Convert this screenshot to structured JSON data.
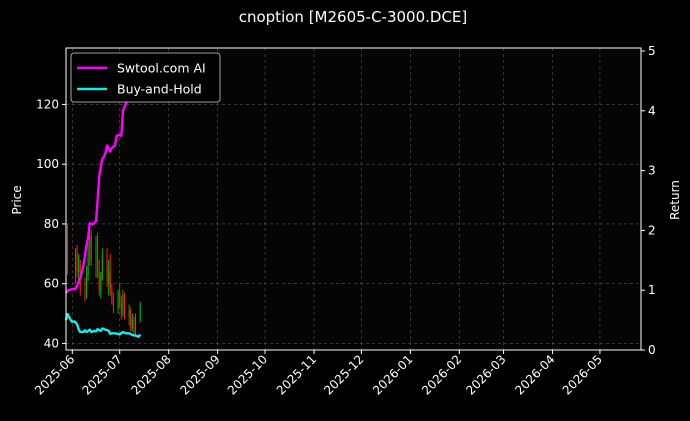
{
  "chart_data": {
    "type": "line",
    "title": "cnoption [M2605-C-3000.DCE]",
    "ylabel_left": "Price",
    "ylabel_right": "Return",
    "ylim_left": [
      37.8,
      138.9
    ],
    "ylim_right": [
      0,
      5.05
    ],
    "xlim": [
      "2025-05-28",
      "2026-05-27"
    ],
    "y_ticks_left": [
      40,
      60,
      80,
      100,
      120
    ],
    "y_ticks_right": [
      0,
      1,
      2,
      3,
      4,
      5
    ],
    "x_ticks": [
      "2025-06",
      "2025-07",
      "2025-08",
      "2025-09",
      "2025-10",
      "2025-11",
      "2025-12",
      "2026-01",
      "2026-02",
      "2026-03",
      "2026-04",
      "2026-05"
    ],
    "grid": true,
    "legend_position": "upper-left",
    "colors": {
      "background": "#000000",
      "plot_background": "#050505",
      "strategy": "#ff00ff",
      "buy_hold": "#22e5e5",
      "up_candle": "#00b000",
      "down_candle": "#ff1a1a"
    },
    "candles": [
      {
        "date": "2025-05-28",
        "open": 64,
        "high": 74,
        "low": 62,
        "close": 72
      },
      {
        "date": "2025-05-29",
        "open": 75,
        "high": 80,
        "low": 63,
        "close": 67
      },
      {
        "date": "2025-06-03",
        "open": 62,
        "high": 72,
        "low": 60,
        "close": 70
      },
      {
        "date": "2025-06-04",
        "open": 71,
        "high": 73,
        "low": 62,
        "close": 64
      },
      {
        "date": "2025-06-05",
        "open": 64,
        "high": 70,
        "low": 60,
        "close": 69
      },
      {
        "date": "2025-06-06",
        "open": 66,
        "high": 68,
        "low": 56,
        "close": 58
      },
      {
        "date": "2025-06-09",
        "open": 57,
        "high": 62,
        "low": 54,
        "close": 56
      },
      {
        "date": "2025-06-10",
        "open": 56,
        "high": 66,
        "low": 55,
        "close": 64
      },
      {
        "date": "2025-06-11",
        "open": 63,
        "high": 74,
        "low": 61,
        "close": 71
      },
      {
        "date": "2025-06-12",
        "open": 72,
        "high": 79,
        "low": 66,
        "close": 76
      },
      {
        "date": "2025-06-13",
        "open": 76,
        "high": 78,
        "low": 66,
        "close": 68
      },
      {
        "date": "2025-06-16",
        "open": 68,
        "high": 76,
        "low": 62,
        "close": 74
      },
      {
        "date": "2025-06-17",
        "open": 75,
        "high": 77,
        "low": 62,
        "close": 64
      },
      {
        "date": "2025-06-18",
        "open": 64,
        "high": 68,
        "low": 56,
        "close": 58
      },
      {
        "date": "2025-06-19",
        "open": 58,
        "high": 64,
        "low": 55,
        "close": 62
      },
      {
        "date": "2025-06-20",
        "open": 62,
        "high": 72,
        "low": 61,
        "close": 70
      },
      {
        "date": "2025-06-23",
        "open": 70,
        "high": 72,
        "low": 59,
        "close": 61
      },
      {
        "date": "2025-06-24",
        "open": 60,
        "high": 68,
        "low": 56,
        "close": 66
      },
      {
        "date": "2025-06-25",
        "open": 64,
        "high": 70,
        "low": 56,
        "close": 58
      },
      {
        "date": "2025-06-26",
        "open": 58,
        "high": 60,
        "low": 53,
        "close": 55
      },
      {
        "date": "2025-06-27",
        "open": 55,
        "high": 57,
        "low": 50,
        "close": 52
      },
      {
        "date": "2025-06-30",
        "open": 52,
        "high": 58,
        "low": 50,
        "close": 57
      },
      {
        "date": "2025-07-01",
        "open": 57,
        "high": 60,
        "low": 52,
        "close": 53
      },
      {
        "date": "2025-07-02",
        "open": 53,
        "high": 56,
        "low": 48,
        "close": 50
      },
      {
        "date": "2025-07-03",
        "open": 50,
        "high": 58,
        "low": 49,
        "close": 56
      },
      {
        "date": "2025-07-04",
        "open": 56,
        "high": 57,
        "low": 48,
        "close": 49
      },
      {
        "date": "2025-07-07",
        "open": 49,
        "high": 53,
        "low": 46,
        "close": 51
      },
      {
        "date": "2025-07-08",
        "open": 51,
        "high": 52,
        "low": 44,
        "close": 45
      },
      {
        "date": "2025-07-09",
        "open": 45,
        "high": 50,
        "low": 44,
        "close": 48
      },
      {
        "date": "2025-07-10",
        "open": 48,
        "high": 49,
        "low": 42,
        "close": 43
      },
      {
        "date": "2025-07-11",
        "open": 43,
        "high": 50,
        "low": 43,
        "close": 49
      },
      {
        "date": "2025-07-14",
        "open": 48,
        "high": 54,
        "low": 47,
        "close": 53
      }
    ],
    "series": [
      {
        "name": "Swtool.com AI",
        "axis": "right",
        "x": [
          "2025-05-28",
          "2025-05-29",
          "2025-06-01",
          "2025-06-03",
          "2025-06-04",
          "2025-06-06",
          "2025-06-08",
          "2025-06-10",
          "2025-06-11",
          "2025-06-12",
          "2025-06-14",
          "2025-06-16",
          "2025-06-17",
          "2025-06-18",
          "2025-06-20",
          "2025-06-21",
          "2025-06-22",
          "2025-06-23",
          "2025-06-25",
          "2025-06-26",
          "2025-06-28",
          "2025-06-29",
          "2025-07-01",
          "2025-07-02",
          "2025-07-03",
          "2025-07-05",
          "2025-07-06",
          "2025-07-08",
          "2025-07-10"
        ],
        "values": [
          0.95,
          0.99,
          1.02,
          1.02,
          1.08,
          1.2,
          1.4,
          1.75,
          1.88,
          2.12,
          2.1,
          2.15,
          2.5,
          2.9,
          3.2,
          3.23,
          3.3,
          3.42,
          3.32,
          3.38,
          3.42,
          3.58,
          3.6,
          3.58,
          4.0,
          4.12,
          4.2,
          4.35,
          4.55
        ]
      },
      {
        "name": "Buy-and-Hold",
        "axis": "right",
        "x": [
          "2025-05-28",
          "2025-05-29",
          "2025-05-31",
          "2025-06-01",
          "2025-06-02",
          "2025-06-03",
          "2025-06-04",
          "2025-06-05",
          "2025-06-06",
          "2025-06-08",
          "2025-06-09",
          "2025-06-10",
          "2025-06-11",
          "2025-06-12",
          "2025-06-13",
          "2025-06-15",
          "2025-06-16",
          "2025-06-17",
          "2025-06-18",
          "2025-06-19",
          "2025-06-20",
          "2025-06-21",
          "2025-06-22",
          "2025-06-24",
          "2025-06-25",
          "2025-06-26",
          "2025-06-28",
          "2025-07-01",
          "2025-07-03",
          "2025-07-05",
          "2025-07-07",
          "2025-07-09",
          "2025-07-11",
          "2025-07-13",
          "2025-07-14"
        ],
        "values": [
          0.5,
          0.6,
          0.5,
          0.47,
          0.48,
          0.46,
          0.43,
          0.35,
          0.3,
          0.3,
          0.33,
          0.3,
          0.32,
          0.34,
          0.3,
          0.32,
          0.31,
          0.35,
          0.33,
          0.32,
          0.36,
          0.35,
          0.34,
          0.32,
          0.27,
          0.28,
          0.28,
          0.26,
          0.3,
          0.28,
          0.28,
          0.25,
          0.24,
          0.22,
          0.26
        ]
      }
    ]
  }
}
